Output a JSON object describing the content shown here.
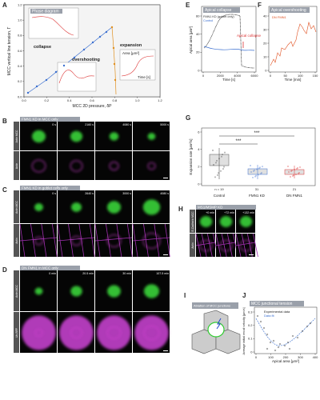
{
  "panels": {
    "A": {
      "label": "A",
      "inset_title": "Phase diagram",
      "y_label": "MCC vertical line tension, Γ",
      "x_label": "MCC 2D pressure, δP",
      "xticks": [
        "0.0",
        "0.2",
        "0.4",
        "0.6",
        "0.8",
        "1.0",
        "1.2"
      ],
      "yticks": [
        "0.0",
        "0.2",
        "0.4",
        "0.6",
        "0.8",
        "1.0",
        "1.2"
      ],
      "regions": [
        "collapse",
        "overshooting",
        "expansion"
      ],
      "inset_x_label": "Time [s]",
      "inset_y_label": "Area [μm²]"
    },
    "E": {
      "label": "E",
      "title": "Apical collapse",
      "legend": [
        "FMN1 KD (goblet only)",
        "Control"
      ],
      "annotation": "Apical collapse",
      "y_label": "Apical area [μm²]",
      "x_label": "Time [s]",
      "xticks": [
        "0",
        "2000",
        "4000",
        "6000"
      ],
      "yticks": [
        "0",
        "20",
        "40",
        "60"
      ]
    },
    "F": {
      "label": "F",
      "title": "Apical overshooting",
      "legend": [
        "DN FMN1"
      ],
      "x_label": "Time [min]",
      "xticks": [
        "0",
        "50",
        "100",
        "150"
      ],
      "yticks": [
        "0",
        "10",
        "20",
        "30",
        "40"
      ]
    },
    "B": {
      "label": "B",
      "title": "FMN1 KD in MCC only",
      "times": [
        "0 s",
        "2160 s",
        "4080 s",
        "5000 s"
      ],
      "rows": [
        "Actin MCC",
        "Actin"
      ]
    },
    "G": {
      "label": "G",
      "y_label": "Expansion rate [μm²/s]",
      "categories": [
        "Control",
        "FMN1 KD",
        "DN FMN1"
      ],
      "n": [
        "n = 19",
        "31",
        "21"
      ],
      "significance": [
        "***",
        "***"
      ],
      "yticks": [
        "0",
        "2",
        "4",
        "6"
      ]
    },
    "C": {
      "label": "C",
      "title": "FMN1 KD in goblet cells only",
      "times": [
        "0 s",
        "2640 s",
        "3000 s",
        "4080 s"
      ],
      "rows": [
        "Actin MCC",
        "Actin"
      ]
    },
    "H": {
      "label": "H",
      "title": "MS1/MSMP KD",
      "times": [
        "+0 min",
        "+72 min",
        "+132 min"
      ],
      "rows": [
        "E-Cadherin MCC",
        "Actin"
      ]
    },
    "D": {
      "label": "D",
      "title": "DN FMN1 in MCC only",
      "times": [
        "0 min",
        "20.5 min",
        "30 min",
        "107.5 min"
      ],
      "rows": [
        "Actin MCC",
        "Utr-RFP"
      ]
    },
    "I": {
      "label": "I",
      "title": "Ablation of MCC junctions"
    },
    "J": {
      "label": "J",
      "title": "MCC junctional tension",
      "legend": [
        "Experimental data",
        "Data fit"
      ],
      "y_label": "Average initial recoil velocity [μm/s]",
      "x_label": "Apical area [μm²]",
      "xticks": [
        "0",
        "100",
        "200",
        "300",
        "400"
      ],
      "yticks": [
        "0",
        "0.1",
        "0.2",
        "0.3"
      ]
    }
  }
}
